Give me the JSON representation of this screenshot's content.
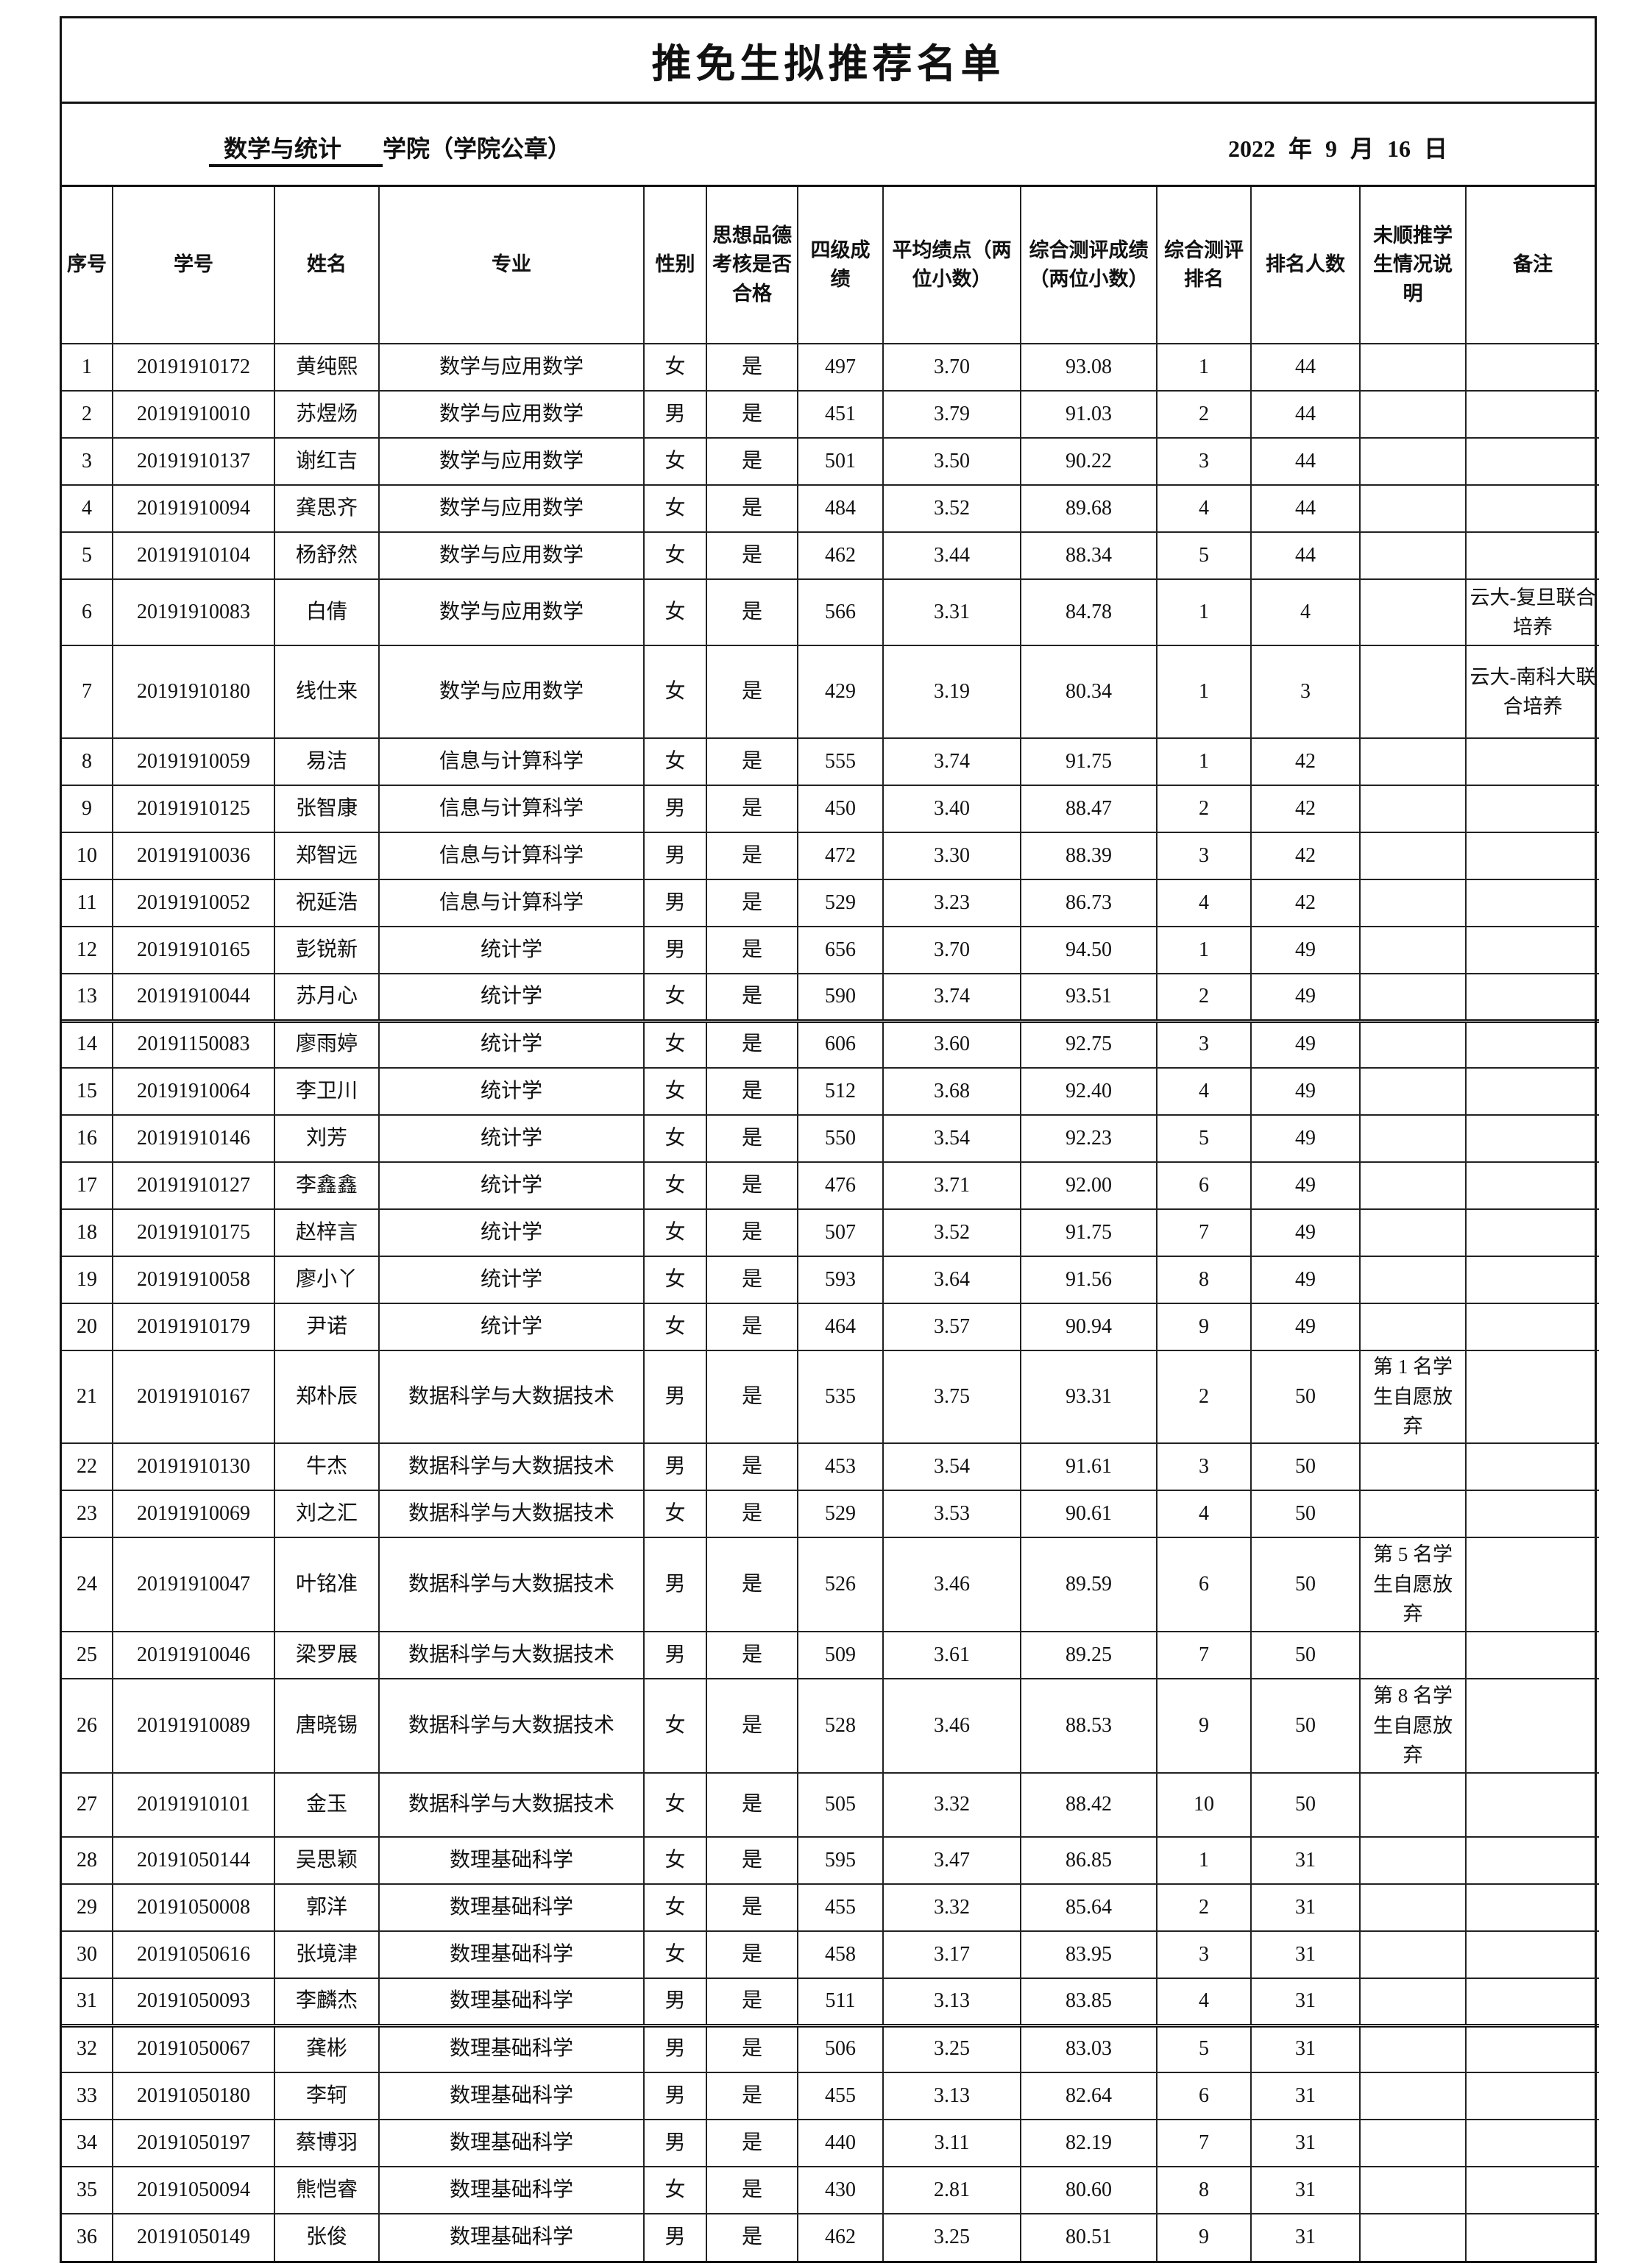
{
  "title": "推免生拟推荐名单",
  "college": {
    "name": "数学与统计",
    "suffix": "学院（学院公章）"
  },
  "date": {
    "year": "2022",
    "year_unit": "年",
    "month": "9",
    "month_unit": "月",
    "day": "16",
    "day_unit": "日"
  },
  "columns": [
    "序号",
    "学号",
    "姓名",
    "专业",
    "性别",
    "思想品德考核是否合格",
    "四级成绩",
    "平均绩点（两位小数）",
    "综合测评成绩（两位小数）",
    "综合测评排名",
    "排名人数",
    "未顺推学生情况说明",
    "备注"
  ],
  "rows": [
    [
      "1",
      "20191910172",
      "黄纯熙",
      "数学与应用数学",
      "女",
      "是",
      "497",
      "3.70",
      "93.08",
      "1",
      "44",
      "",
      ""
    ],
    [
      "2",
      "20191910010",
      "苏煜炀",
      "数学与应用数学",
      "男",
      "是",
      "451",
      "3.79",
      "91.03",
      "2",
      "44",
      "",
      ""
    ],
    [
      "3",
      "20191910137",
      "谢红吉",
      "数学与应用数学",
      "女",
      "是",
      "501",
      "3.50",
      "90.22",
      "3",
      "44",
      "",
      ""
    ],
    [
      "4",
      "20191910094",
      "龚思齐",
      "数学与应用数学",
      "女",
      "是",
      "484",
      "3.52",
      "89.68",
      "4",
      "44",
      "",
      ""
    ],
    [
      "5",
      "20191910104",
      "杨舒然",
      "数学与应用数学",
      "女",
      "是",
      "462",
      "3.44",
      "88.34",
      "5",
      "44",
      "",
      ""
    ],
    [
      "6",
      "20191910083",
      "白倩",
      "数学与应用数学",
      "女",
      "是",
      "566",
      "3.31",
      "84.78",
      "1",
      "4",
      "",
      "云大-复旦联合培养"
    ],
    [
      "7",
      "20191910180",
      "线仕来",
      "数学与应用数学",
      "女",
      "是",
      "429",
      "3.19",
      "80.34",
      "1",
      "3",
      "",
      "云大-南科大联合培养"
    ],
    [
      "8",
      "20191910059",
      "易洁",
      "信息与计算科学",
      "女",
      "是",
      "555",
      "3.74",
      "91.75",
      "1",
      "42",
      "",
      ""
    ],
    [
      "9",
      "20191910125",
      "张智康",
      "信息与计算科学",
      "男",
      "是",
      "450",
      "3.40",
      "88.47",
      "2",
      "42",
      "",
      ""
    ],
    [
      "10",
      "20191910036",
      "郑智远",
      "信息与计算科学",
      "男",
      "是",
      "472",
      "3.30",
      "88.39",
      "3",
      "42",
      "",
      ""
    ],
    [
      "11",
      "20191910052",
      "祝延浩",
      "信息与计算科学",
      "男",
      "是",
      "529",
      "3.23",
      "86.73",
      "4",
      "42",
      "",
      ""
    ],
    [
      "12",
      "20191910165",
      "彭锐新",
      "统计学",
      "男",
      "是",
      "656",
      "3.70",
      "94.50",
      "1",
      "49",
      "",
      ""
    ],
    [
      "13",
      "20191910044",
      "苏月心",
      "统计学",
      "女",
      "是",
      "590",
      "3.74",
      "93.51",
      "2",
      "49",
      "",
      ""
    ],
    [
      "14",
      "20191150083",
      "廖雨婷",
      "统计学",
      "女",
      "是",
      "606",
      "3.60",
      "92.75",
      "3",
      "49",
      "",
      ""
    ],
    [
      "15",
      "20191910064",
      "李卫川",
      "统计学",
      "女",
      "是",
      "512",
      "3.68",
      "92.40",
      "4",
      "49",
      "",
      ""
    ],
    [
      "16",
      "20191910146",
      "刘芳",
      "统计学",
      "女",
      "是",
      "550",
      "3.54",
      "92.23",
      "5",
      "49",
      "",
      ""
    ],
    [
      "17",
      "20191910127",
      "李鑫鑫",
      "统计学",
      "女",
      "是",
      "476",
      "3.71",
      "92.00",
      "6",
      "49",
      "",
      ""
    ],
    [
      "18",
      "20191910175",
      "赵梓言",
      "统计学",
      "女",
      "是",
      "507",
      "3.52",
      "91.75",
      "7",
      "49",
      "",
      ""
    ],
    [
      "19",
      "20191910058",
      "廖小丫",
      "统计学",
      "女",
      "是",
      "593",
      "3.64",
      "91.56",
      "8",
      "49",
      "",
      ""
    ],
    [
      "20",
      "20191910179",
      "尹诺",
      "统计学",
      "女",
      "是",
      "464",
      "3.57",
      "90.94",
      "9",
      "49",
      "",
      ""
    ],
    [
      "21",
      "20191910167",
      "郑朴辰",
      "数据科学与大数据技术",
      "男",
      "是",
      "535",
      "3.75",
      "93.31",
      "2",
      "50",
      "第 1 名学生自愿放弃",
      ""
    ],
    [
      "22",
      "20191910130",
      "牛杰",
      "数据科学与大数据技术",
      "男",
      "是",
      "453",
      "3.54",
      "91.61",
      "3",
      "50",
      "",
      ""
    ],
    [
      "23",
      "20191910069",
      "刘之汇",
      "数据科学与大数据技术",
      "女",
      "是",
      "529",
      "3.53",
      "90.61",
      "4",
      "50",
      "",
      ""
    ],
    [
      "24",
      "20191910047",
      "叶铭准",
      "数据科学与大数据技术",
      "男",
      "是",
      "526",
      "3.46",
      "89.59",
      "6",
      "50",
      "第 5 名学生自愿放弃",
      ""
    ],
    [
      "25",
      "20191910046",
      "梁罗展",
      "数据科学与大数据技术",
      "男",
      "是",
      "509",
      "3.61",
      "89.25",
      "7",
      "50",
      "",
      ""
    ],
    [
      "26",
      "20191910089",
      "唐晓锡",
      "数据科学与大数据技术",
      "女",
      "是",
      "528",
      "3.46",
      "88.53",
      "9",
      "50",
      "第 8 名学生自愿放弃",
      ""
    ],
    [
      "27",
      "20191910101",
      "金玉",
      "数据科学与大数据技术",
      "女",
      "是",
      "505",
      "3.32",
      "88.42",
      "10",
      "50",
      "",
      ""
    ],
    [
      "28",
      "20191050144",
      "吴思颖",
      "数理基础科学",
      "女",
      "是",
      "595",
      "3.47",
      "86.85",
      "1",
      "31",
      "",
      ""
    ],
    [
      "29",
      "20191050008",
      "郭洋",
      "数理基础科学",
      "女",
      "是",
      "455",
      "3.32",
      "85.64",
      "2",
      "31",
      "",
      ""
    ],
    [
      "30",
      "20191050616",
      "张境津",
      "数理基础科学",
      "女",
      "是",
      "458",
      "3.17",
      "83.95",
      "3",
      "31",
      "",
      ""
    ],
    [
      "31",
      "20191050093",
      "李麟杰",
      "数理基础科学",
      "男",
      "是",
      "511",
      "3.13",
      "83.85",
      "4",
      "31",
      "",
      ""
    ],
    [
      "32",
      "20191050067",
      "龚彬",
      "数理基础科学",
      "男",
      "是",
      "506",
      "3.25",
      "83.03",
      "5",
      "31",
      "",
      ""
    ],
    [
      "33",
      "20191050180",
      "李轲",
      "数理基础科学",
      "男",
      "是",
      "455",
      "3.13",
      "82.64",
      "6",
      "31",
      "",
      ""
    ],
    [
      "34",
      "20191050197",
      "蔡博羽",
      "数理基础科学",
      "男",
      "是",
      "440",
      "3.11",
      "82.19",
      "7",
      "31",
      "",
      ""
    ],
    [
      "35",
      "20191050094",
      "熊恺睿",
      "数理基础科学",
      "女",
      "是",
      "430",
      "2.81",
      "80.60",
      "8",
      "31",
      "",
      ""
    ],
    [
      "36",
      "20191050149",
      "张俊",
      "数理基础科学",
      "男",
      "是",
      "462",
      "3.25",
      "80.51",
      "9",
      "31",
      "",
      ""
    ]
  ]
}
